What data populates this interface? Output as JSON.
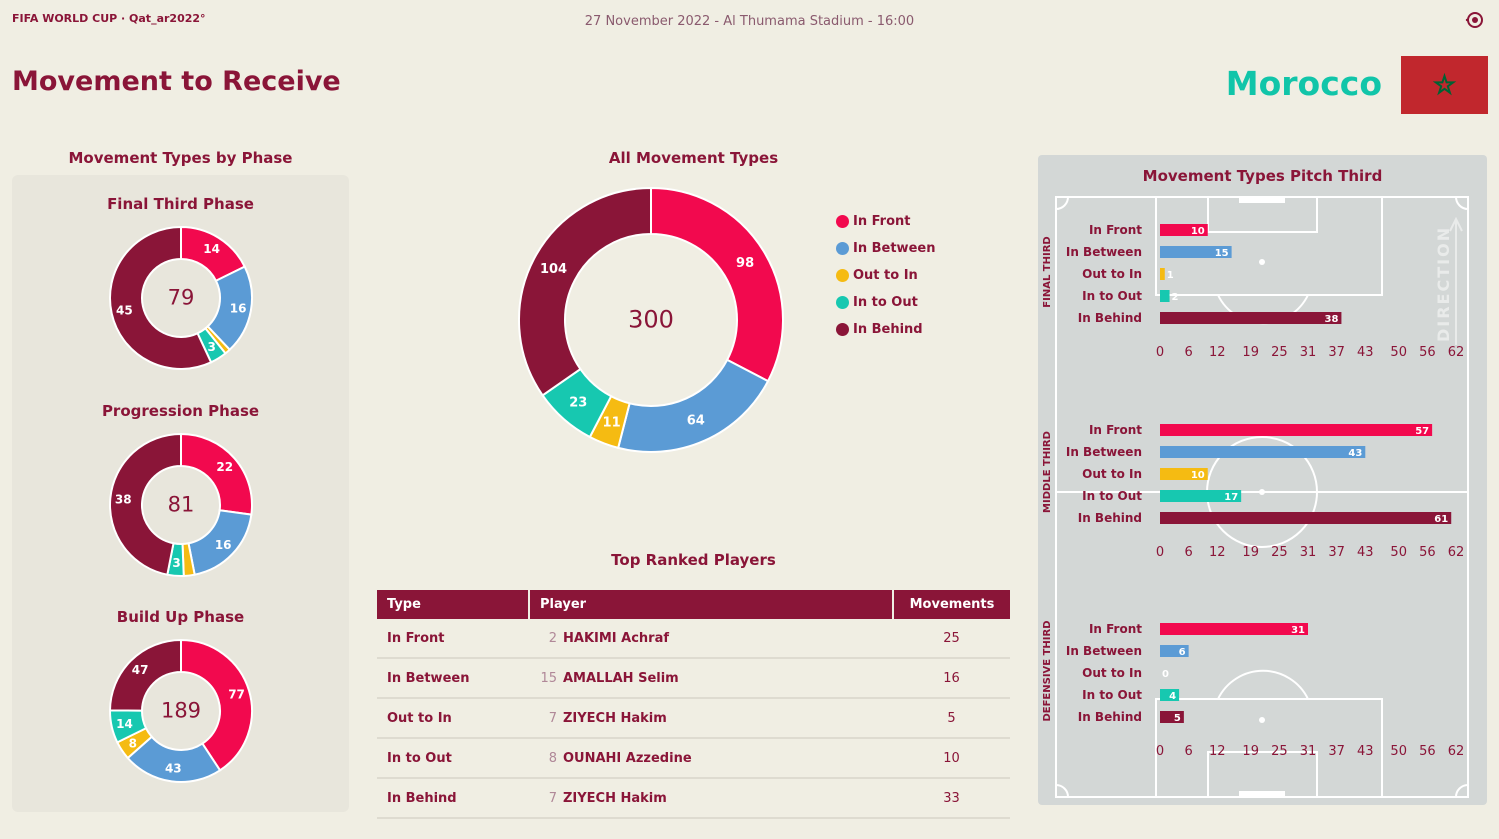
{
  "header": {
    "brand": "FIFA WORLD CUP · Qat_ar2022°",
    "match_info": "27 November 2022 - Al Thumama Stadium - 16:00",
    "title": "Movement to Receive",
    "team": "Morocco"
  },
  "colors": {
    "in_front": "#f2094e",
    "in_between": "#5b9bd5",
    "out_to_in": "#f5bb12",
    "in_to_out": "#17c8b0",
    "in_behind": "#8a1538",
    "accent": "#8a1538",
    "team": "#11c5a9",
    "flag_red": "#c1272d",
    "flag_star": "#006233"
  },
  "icons": {
    "ball": "football-icon",
    "flag": "morocco-flag-icon",
    "star": "pentagram-star-icon"
  },
  "sections": {
    "phases_title": "Movement Types by Phase",
    "all_title": "All Movement Types",
    "players_title": "Top Ranked Players",
    "pitch_title": "Movement Types Pitch Third"
  },
  "chart_data": [
    {
      "type": "pie",
      "donut": true,
      "title": "Final Third Phase",
      "total": 79,
      "categories": [
        "In Front",
        "In Between",
        "Out to In",
        "In to Out",
        "In Behind"
      ],
      "values": [
        14,
        16,
        1,
        3,
        45
      ],
      "labels": [
        "14",
        "16",
        "",
        "3",
        "45"
      ]
    },
    {
      "type": "pie",
      "donut": true,
      "title": "Progression Phase",
      "total": 81,
      "categories": [
        "In Front",
        "In Between",
        "Out to In",
        "In to Out",
        "In Behind"
      ],
      "values": [
        22,
        16,
        2,
        3,
        38
      ],
      "labels": [
        "22",
        "16",
        "",
        "3",
        "38"
      ]
    },
    {
      "type": "pie",
      "donut": true,
      "title": "Build Up Phase",
      "total": 189,
      "categories": [
        "In Front",
        "In Between",
        "Out to In",
        "In to Out",
        "In Behind"
      ],
      "values": [
        77,
        43,
        8,
        14,
        47
      ],
      "labels": [
        "77",
        "43",
        "8",
        "14",
        "47"
      ]
    },
    {
      "type": "pie",
      "donut": true,
      "title": "All Movement Types",
      "total": 300,
      "categories": [
        "In Front",
        "In Between",
        "Out to In",
        "In to Out",
        "In Behind"
      ],
      "values": [
        98,
        64,
        11,
        23,
        104
      ],
      "labels": [
        "98",
        "64",
        "11",
        "23",
        "104"
      ],
      "legend": [
        "In Front",
        "In Between",
        "Out to In",
        "In to Out",
        "In Behind"
      ],
      "legend_position": "right"
    },
    {
      "type": "bar",
      "orientation": "horizontal",
      "title": "FINAL THIRD",
      "categories": [
        "In Front",
        "In Between",
        "Out to In",
        "In to Out",
        "In Behind"
      ],
      "values": [
        10,
        15,
        1,
        2,
        38
      ],
      "ticks": [
        "0",
        "6",
        "12",
        "19",
        "25",
        "31",
        "37",
        "43",
        "50",
        "56",
        "62"
      ],
      "xlim": [
        0,
        62
      ]
    },
    {
      "type": "bar",
      "orientation": "horizontal",
      "title": "MIDDLE THIRD",
      "categories": [
        "In Front",
        "In Between",
        "Out to In",
        "In to Out",
        "In Behind"
      ],
      "values": [
        57,
        43,
        10,
        17,
        61
      ],
      "ticks": [
        "0",
        "6",
        "12",
        "19",
        "25",
        "31",
        "37",
        "43",
        "50",
        "56",
        "62"
      ],
      "xlim": [
        0,
        62
      ]
    },
    {
      "type": "bar",
      "orientation": "horizontal",
      "title": "DEFENSIVE THIRD",
      "categories": [
        "In Front",
        "In Between",
        "Out to In",
        "In to Out",
        "In Behind"
      ],
      "values": [
        31,
        6,
        0,
        4,
        5
      ],
      "ticks": [
        "0",
        "6",
        "12",
        "19",
        "25",
        "31",
        "37",
        "43",
        "50",
        "56",
        "62"
      ],
      "xlim": [
        0,
        62
      ]
    }
  ],
  "pitch": {
    "direction_label": "DIRECTION"
  },
  "table": {
    "headers": [
      "Type",
      "Player",
      "Movements"
    ],
    "rows": [
      {
        "type": "In Front",
        "number": "2",
        "player": "HAKIMI Achraf",
        "movements": "25"
      },
      {
        "type": "In Between",
        "number": "15",
        "player": "AMALLAH Selim",
        "movements": "16"
      },
      {
        "type": "Out to In",
        "number": "7",
        "player": "ZIYECH Hakim",
        "movements": "5"
      },
      {
        "type": "In to Out",
        "number": "8",
        "player": "OUNAHI Azzedine",
        "movements": "10"
      },
      {
        "type": "In Behind",
        "number": "7",
        "player": "ZIYECH Hakim",
        "movements": "33"
      }
    ]
  }
}
